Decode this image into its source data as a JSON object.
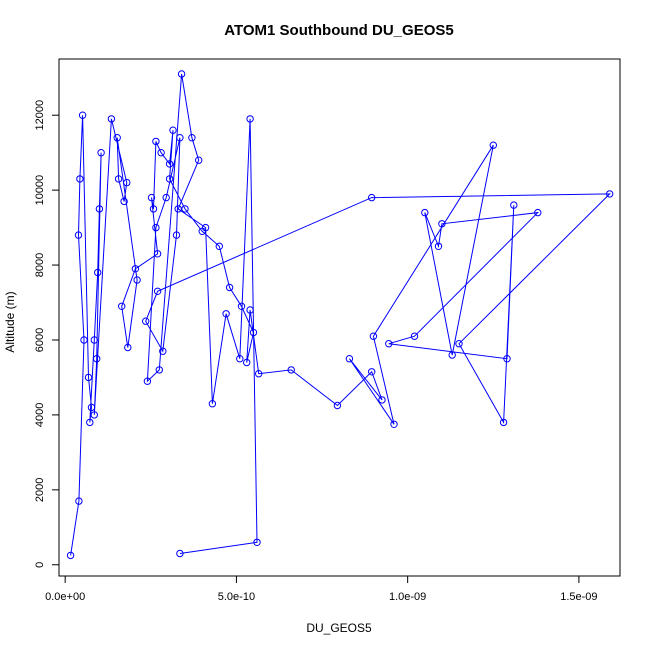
{
  "chart_data": {
    "type": "line",
    "title": "ATOM1 Southbound DU_GEOS5",
    "xlabel": "DU_GEOS5",
    "ylabel": "Altitude (m)",
    "xlim": [
      -1.8e-11,
      1.62e-09
    ],
    "ylim": [
      -300,
      13500
    ],
    "xticks": [
      0,
      5e-10,
      1e-09,
      1.5e-09
    ],
    "xtick_labels": [
      "0.0e+00",
      "5.0e-10",
      "1.0e-09",
      "1.5e-09"
    ],
    "yticks": [
      0,
      2000,
      4000,
      6000,
      8000,
      10000,
      12000
    ],
    "ytick_labels": [
      "0",
      "2000",
      "4000",
      "6000",
      "8000",
      "10000",
      "12000"
    ],
    "series_color": "#0000ff",
    "marker": "open-circle",
    "grid": false,
    "legend": "none",
    "series": [
      {
        "x": [
          1.6e-11,
          4e-11,
          5.5e-11,
          3.9e-11,
          4.3e-11,
          5.1e-11,
          6.8e-11,
          7.7e-11,
          7.2e-11,
          8.5e-11,
          9.5e-11,
          1e-10,
          1.05e-10,
          9.2e-11,
          8.5e-11,
          1.35e-10,
          1.8e-10,
          1.72e-10,
          1.56e-10,
          1.52e-10,
          2.1e-10,
          1.83e-10,
          1.65e-10,
          2.05e-10,
          2.7e-10,
          2.52e-10,
          2.58e-10,
          2.65e-10,
          2.8e-10,
          3.05e-10,
          3.15e-10,
          3.05e-10,
          3.5e-10,
          4e-10,
          4.5e-10,
          4.8e-10,
          5.15e-10,
          5.5e-10,
          5.3e-10,
          5.4e-10,
          5.65e-10,
          6.6e-10,
          7.95e-10,
          8.95e-10,
          9.25e-10,
          8.3e-10,
          9.6e-10,
          9e-10,
          1.25e-09,
          1.13e-09,
          1.05e-09,
          1.09e-09,
          1.1e-09,
          1.38e-09,
          1.02e-09,
          9.45e-10,
          1.29e-09,
          1.31e-09,
          1.28e-09,
          1.15e-09,
          1.59e-09,
          8.95e-10,
          2.7e-10,
          2.35e-10,
          2.85e-10,
          3.25e-10,
          3.35e-10,
          2.95e-10,
          2.65e-10,
          2.4e-10,
          2.75e-10,
          3.4e-10,
          3.7e-10,
          3.9e-10,
          3.3e-10,
          4.1e-10,
          4.3e-10,
          4.7e-10,
          5.1e-10,
          5.4e-10,
          5.6e-10,
          3.35e-10
        ],
        "y": [
          250,
          1700,
          6000,
          8800,
          10300,
          12000,
          5000,
          4200,
          3800,
          6000,
          7800,
          9500,
          11000,
          5500,
          4000,
          11900,
          10200,
          9700,
          10300,
          11400,
          7600,
          5800,
          6900,
          7900,
          8300,
          9800,
          9500,
          11300,
          11000,
          10700,
          11600,
          10300,
          9500,
          8900,
          8500,
          7400,
          6900,
          6200,
          5400,
          6800,
          5100,
          5200,
          4250,
          5150,
          4400,
          5500,
          3750,
          6100,
          11200,
          5600,
          9400,
          8500,
          9100,
          9400,
          6100,
          5900,
          5500,
          9600,
          3800,
          5900,
          9900,
          9800,
          7300,
          6500,
          5700,
          8800,
          11400,
          9800,
          9000,
          4900,
          5200,
          13100,
          11400,
          10800,
          9500,
          9000,
          4300,
          6700,
          5500,
          11900,
          600,
          300
        ]
      }
    ]
  }
}
